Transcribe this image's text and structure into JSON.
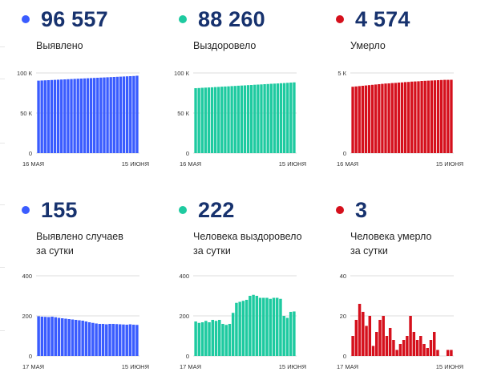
{
  "stats": [
    {
      "value": "96 557",
      "label": "Выявлено",
      "color": "#3a5cff"
    },
    {
      "value": "88 260",
      "label": "Выздоровело",
      "color": "#1ecaa0"
    },
    {
      "value": "4 574",
      "label": "Умерло",
      "color": "#d5101c"
    },
    {
      "value": "155",
      "label": "Выявлено случаев\nза сутки",
      "color": "#3a5cff"
    },
    {
      "value": "222",
      "label": "Человека выздоровело\nза сутки",
      "color": "#1ecaa0"
    },
    {
      "value": "3",
      "label": "Человека умерло\nза сутки",
      "color": "#d5101c"
    }
  ],
  "chart_data": [
    {
      "type": "bar",
      "x_start_label": "16 МАЯ",
      "x_end_label": "15 ИЮНЯ",
      "y_ticks": [
        0,
        50,
        100
      ],
      "y_tick_labels": [
        "0",
        "50 К",
        "100 К"
      ],
      "ylim": [
        0,
        100
      ],
      "unit": "thousands",
      "color": "#3a5cff",
      "values": [
        90.4,
        90.6,
        90.8,
        91.0,
        91.2,
        91.4,
        91.6,
        91.8,
        92.0,
        92.2,
        92.4,
        92.6,
        92.8,
        93.0,
        93.2,
        93.4,
        93.6,
        93.8,
        94.0,
        94.2,
        94.4,
        94.6,
        94.8,
        95.0,
        95.2,
        95.4,
        95.6,
        95.8,
        96.0,
        96.2,
        96.56
      ]
    },
    {
      "type": "bar",
      "x_start_label": "16 МАЯ",
      "x_end_label": "15 ИЮНЯ",
      "y_ticks": [
        0,
        50,
        100
      ],
      "y_tick_labels": [
        "0",
        "50 К",
        "100 К"
      ],
      "ylim": [
        0,
        100
      ],
      "unit": "thousands",
      "color": "#1ecaa0",
      "values": [
        81.0,
        81.2,
        81.5,
        81.7,
        81.9,
        82.1,
        82.4,
        82.6,
        82.9,
        83.1,
        83.3,
        83.6,
        83.8,
        84.1,
        84.3,
        84.5,
        84.8,
        85.0,
        85.3,
        85.5,
        85.7,
        86.0,
        86.2,
        86.5,
        86.7,
        86.9,
        87.2,
        87.4,
        87.7,
        88.0,
        88.26
      ]
    },
    {
      "type": "bar",
      "x_start_label": "16 МАЯ",
      "x_end_label": "15 ИЮНЯ",
      "y_ticks": [
        0,
        5
      ],
      "y_tick_labels": [
        "0",
        "5 К"
      ],
      "ylim": [
        0,
        5
      ],
      "unit": "thousands",
      "color": "#d5101c",
      "values": [
        4.14,
        4.16,
        4.18,
        4.2,
        4.22,
        4.24,
        4.26,
        4.28,
        4.3,
        4.32,
        4.34,
        4.35,
        4.37,
        4.38,
        4.4,
        4.41,
        4.43,
        4.44,
        4.46,
        4.47,
        4.48,
        4.5,
        4.51,
        4.52,
        4.53,
        4.54,
        4.55,
        4.56,
        4.57,
        4.571,
        4.574
      ]
    },
    {
      "type": "bar",
      "x_start_label": "17 МАЯ",
      "x_end_label": "15 ИЮНЯ",
      "y_ticks": [
        0,
        200,
        400
      ],
      "y_tick_labels": [
        "0",
        "200",
        "400"
      ],
      "ylim": [
        0,
        400
      ],
      "color": "#3a5cff",
      "values": [
        198,
        196,
        195,
        194,
        196,
        193,
        190,
        188,
        186,
        184,
        182,
        180,
        178,
        176,
        172,
        168,
        165,
        162,
        160,
        160,
        158,
        160,
        160,
        159,
        158,
        157,
        156,
        158,
        156,
        155
      ]
    },
    {
      "type": "bar",
      "x_start_label": "17 МАЯ",
      "x_end_label": "15 ИЮНЯ",
      "y_ticks": [
        0,
        200,
        400
      ],
      "y_tick_labels": [
        "0",
        "200",
        "400"
      ],
      "ylim": [
        0,
        400
      ],
      "color": "#1ecaa0",
      "values": [
        172,
        165,
        168,
        175,
        168,
        180,
        175,
        180,
        160,
        155,
        160,
        215,
        265,
        270,
        275,
        280,
        300,
        305,
        300,
        290,
        290,
        290,
        285,
        290,
        290,
        285,
        200,
        190,
        220,
        222
      ]
    },
    {
      "type": "bar",
      "x_start_label": "17 МАЯ",
      "x_end_label": "15 ИЮНЯ",
      "y_ticks": [
        0,
        20,
        40
      ],
      "y_tick_labels": [
        "0",
        "20",
        "40"
      ],
      "ylim": [
        0,
        40
      ],
      "color": "#d5101c",
      "values": [
        10,
        18,
        26,
        22,
        15,
        20,
        5,
        12,
        18,
        20,
        10,
        14,
        8,
        3,
        6,
        8,
        10,
        20,
        12,
        8,
        10,
        6,
        4,
        8,
        12,
        3,
        0,
        0,
        3,
        3
      ]
    }
  ]
}
